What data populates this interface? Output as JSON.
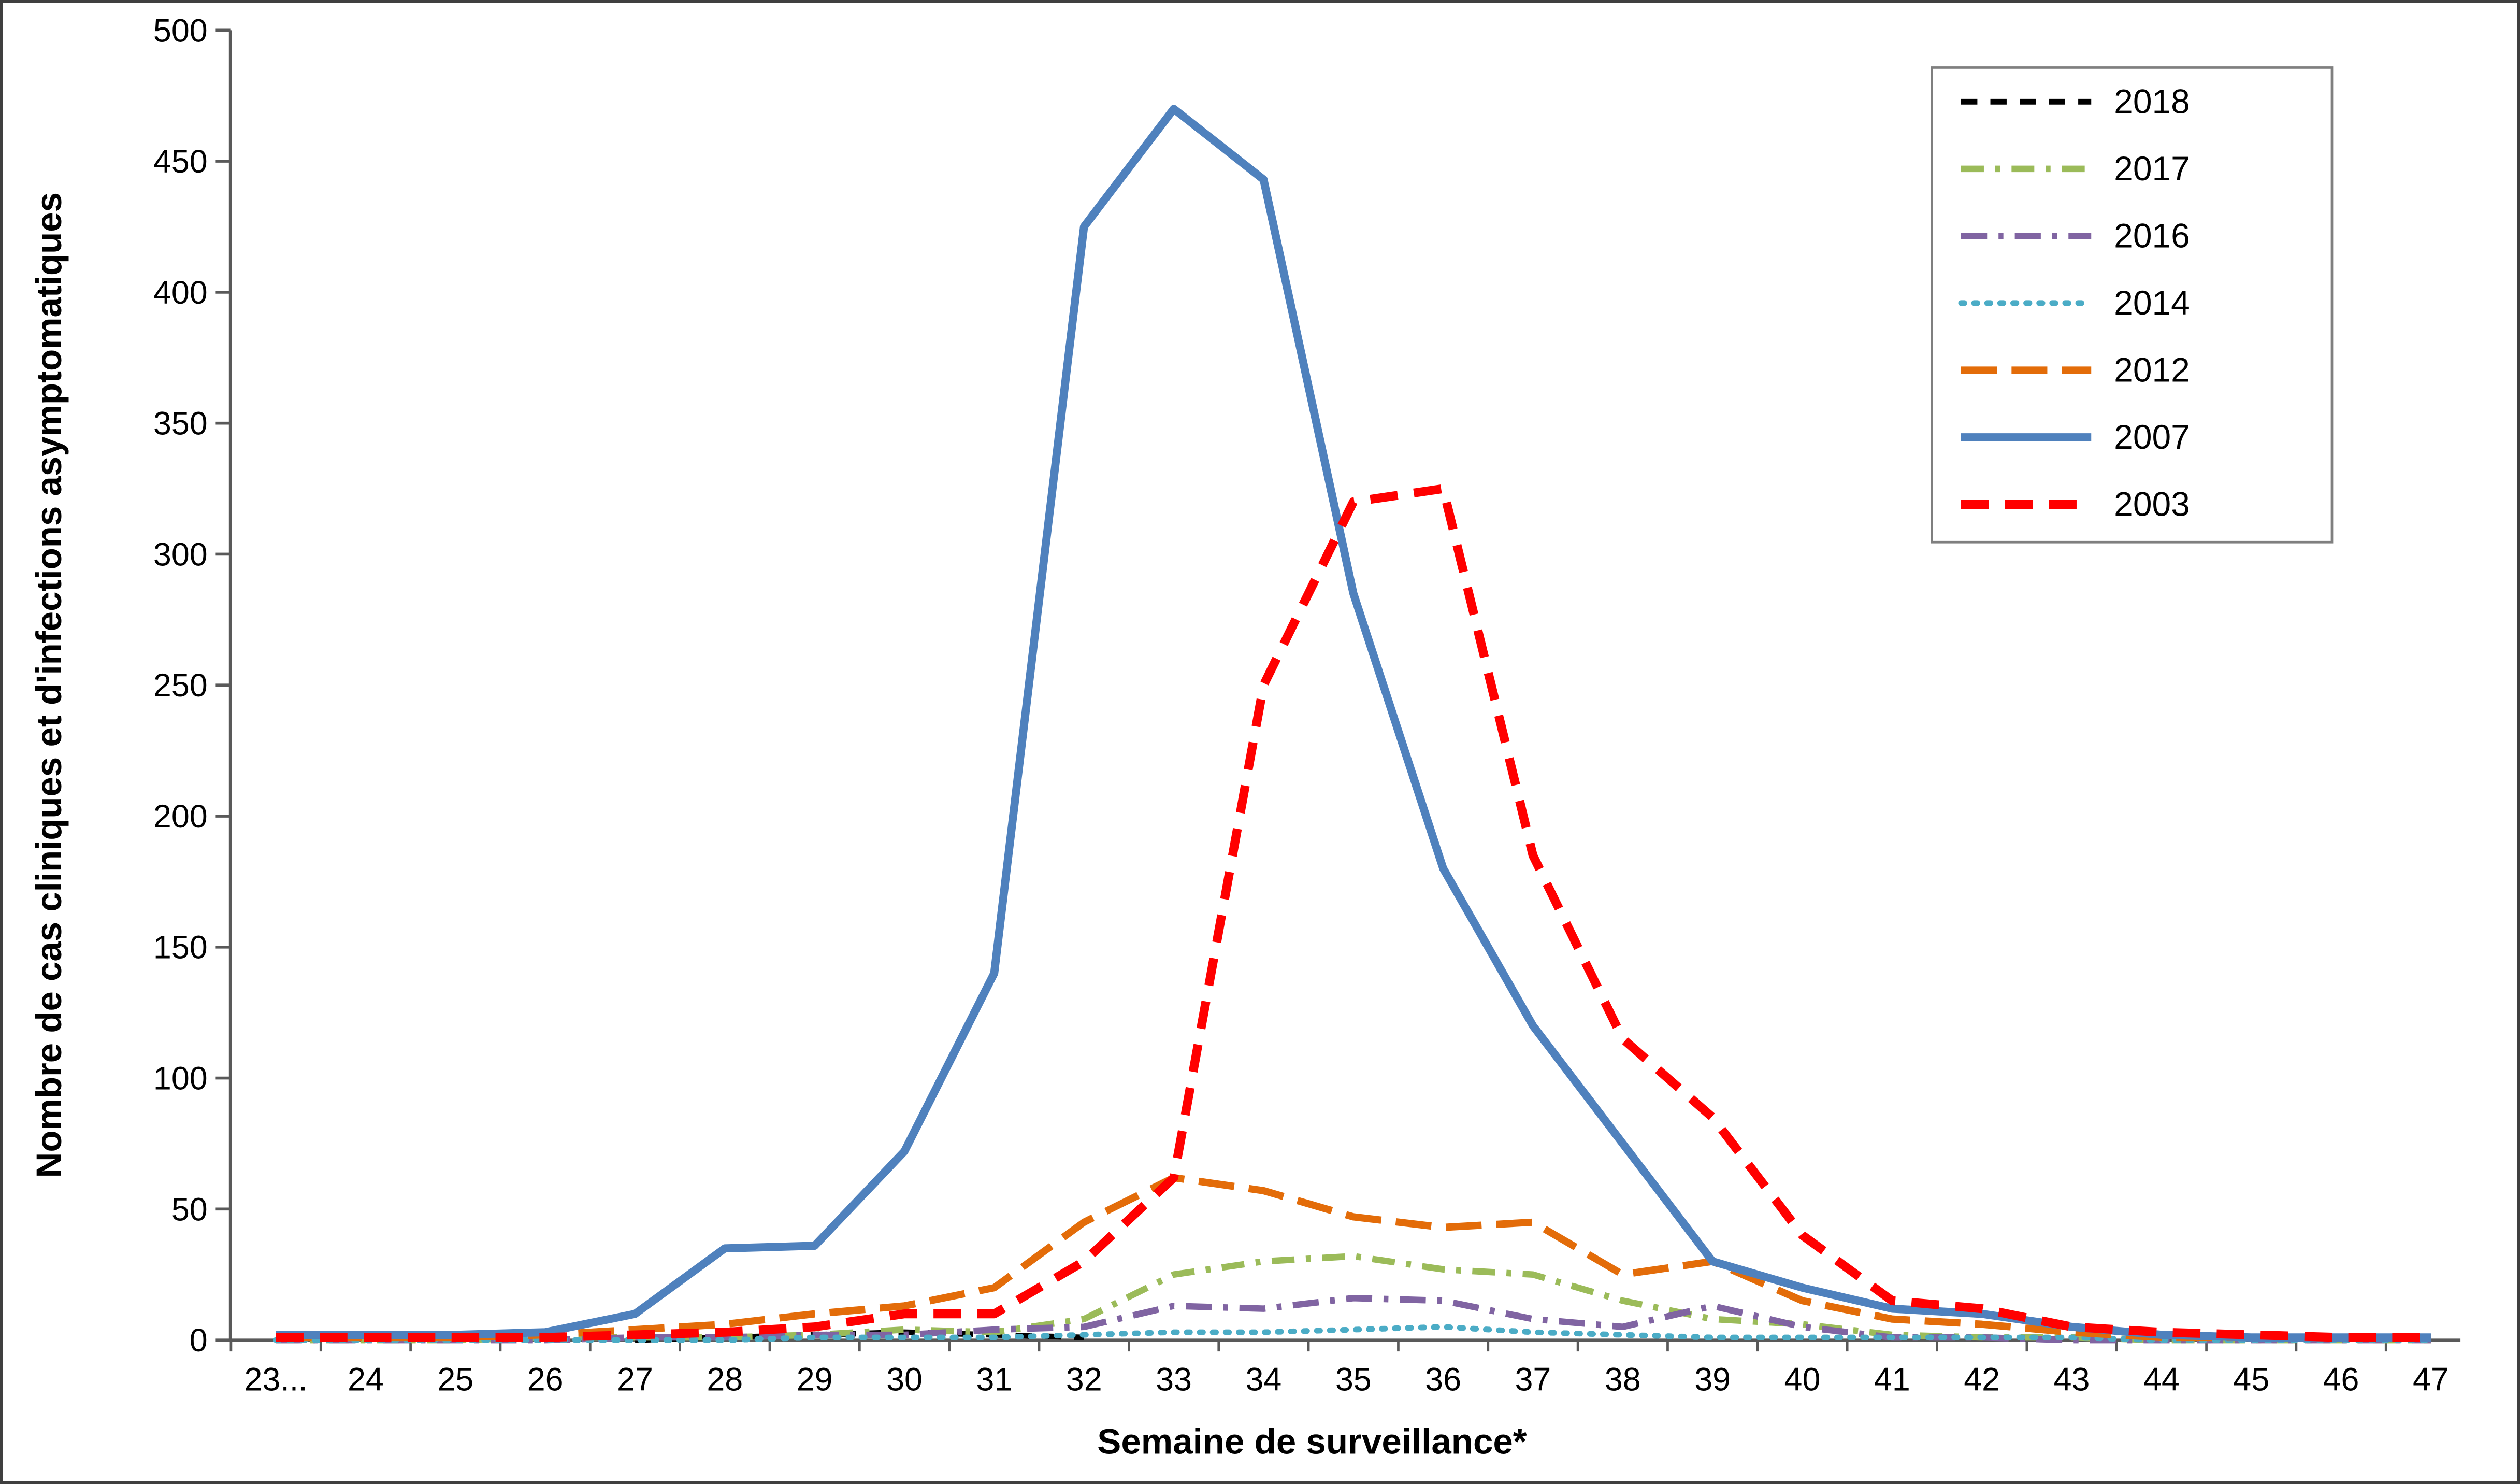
{
  "chart_data": {
    "type": "line",
    "title": "",
    "xlabel": "Semaine de surveillance*",
    "ylabel": "Nombre de cas cliniques et d'infections asymptomatiques",
    "ylim": [
      0,
      500
    ],
    "ytick_step": 50,
    "y_ticks": [
      "0",
      "50",
      "100",
      "150",
      "200",
      "250",
      "300",
      "350",
      "400",
      "450",
      "500"
    ],
    "grid": false,
    "legend_position": "top-right",
    "categories": [
      "23...",
      "24",
      "25",
      "26",
      "27",
      "28",
      "29",
      "30",
      "31",
      "32",
      "33",
      "34",
      "35",
      "36",
      "37",
      "38",
      "39",
      "40",
      "41",
      "42",
      "43",
      "44",
      "45",
      "46",
      "47"
    ],
    "series": [
      {
        "name": "2018",
        "color": "#000000",
        "dash": "10 8",
        "width": 3.5,
        "cap": "butt",
        "values": [
          null,
          null,
          null,
          null,
          0,
          1,
          2,
          3,
          2,
          1,
          null,
          null,
          null,
          null,
          null,
          null,
          null,
          null,
          null,
          null,
          null,
          null,
          null,
          null,
          null
        ]
      },
      {
        "name": "2017",
        "color": "#9BBB59",
        "dash": "14 7 3 7",
        "width": 4,
        "cap": "butt",
        "values": [
          0,
          0,
          0,
          1,
          1,
          1,
          2,
          4,
          3,
          8,
          25,
          30,
          32,
          27,
          25,
          15,
          8,
          6,
          2,
          1,
          1,
          0,
          0,
          0,
          0
        ]
      },
      {
        "name": "2016",
        "color": "#8064A2",
        "dash": "16 7 3 7",
        "width": 4,
        "cap": "butt",
        "values": [
          0,
          0,
          0,
          0,
          1,
          1,
          2,
          2,
          4,
          5,
          13,
          12,
          16,
          15,
          8,
          5,
          13,
          5,
          1,
          1,
          0,
          0,
          0,
          0,
          0
        ]
      },
      {
        "name": "2014",
        "color": "#4BACC6",
        "dash": "2 6",
        "width": 3.5,
        "cap": "round",
        "values": [
          0,
          0,
          0,
          0,
          0,
          0,
          1,
          1,
          1,
          2,
          3,
          3,
          4,
          5,
          3,
          2,
          1,
          1,
          1,
          1,
          1,
          0,
          0,
          0,
          0
        ]
      },
      {
        "name": "2012",
        "color": "#E36C09",
        "dash": "22 9",
        "width": 4.5,
        "cap": "butt",
        "values": [
          1,
          1,
          1,
          2,
          4,
          6,
          10,
          13,
          20,
          45,
          62,
          57,
          47,
          43,
          45,
          25,
          30,
          15,
          8,
          6,
          3,
          1,
          1,
          1,
          1
        ]
      },
      {
        "name": "2007",
        "color": "#4F81BD",
        "dash": "",
        "width": 5,
        "cap": "butt",
        "values": [
          2,
          2,
          2,
          3,
          10,
          35,
          36,
          72,
          140,
          425,
          470,
          443,
          285,
          180,
          120,
          75,
          30,
          20,
          12,
          10,
          5,
          2,
          1,
          1,
          1
        ]
      },
      {
        "name": "2003",
        "color": "#FF0000",
        "dash": "17 10",
        "width": 5.5,
        "cap": "butt",
        "values": [
          1,
          1,
          1,
          1,
          2,
          3,
          5,
          10,
          10,
          30,
          62,
          250,
          320,
          325,
          185,
          115,
          85,
          40,
          15,
          12,
          5,
          3,
          2,
          1,
          1
        ]
      }
    ]
  }
}
